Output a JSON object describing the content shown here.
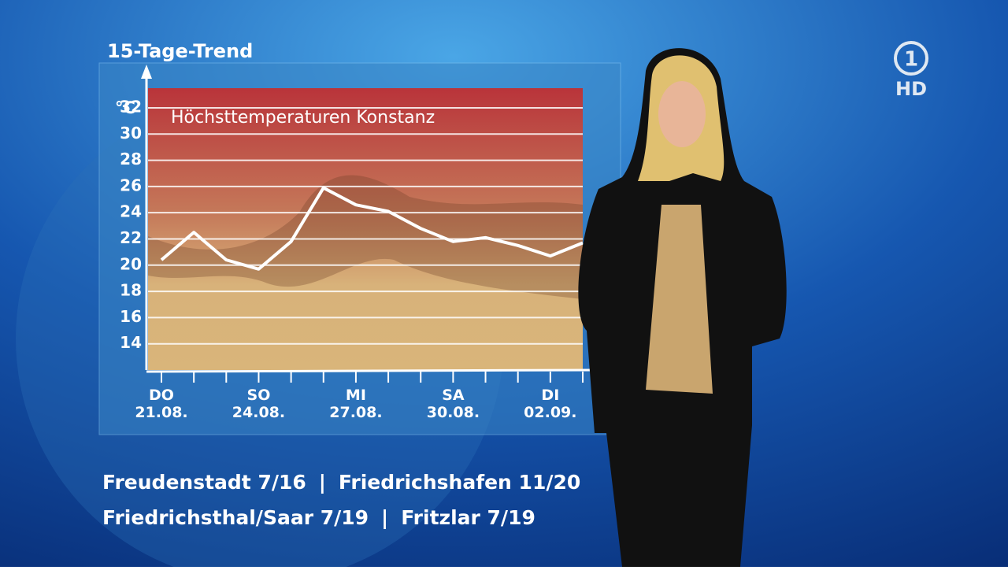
{
  "chart_data": {
    "type": "line",
    "header": "15-Tage-Trend",
    "title": "Höchsttemperaturen Konstanz",
    "ylabel": "°C",
    "categories": [
      "DO 21.08.",
      null,
      null,
      "SO 24.08.",
      null,
      null,
      "MI 27.08.",
      null,
      null,
      "SA 30.08.",
      null,
      null,
      "DI 02.09.",
      null
    ],
    "series": [
      {
        "name": "Höchsttemperatur",
        "color": "#ffffff",
        "values": [
          20.4,
          22.5,
          20.4,
          19.7,
          21.8,
          25.9,
          24.6,
          24.1,
          22.8,
          21.8,
          22.1,
          21.5,
          20.7,
          21.7
        ]
      }
    ],
    "ylim": [
      12,
      33.5
    ],
    "yticks": [
      14,
      16,
      18,
      20,
      22,
      24,
      26,
      28,
      30,
      32
    ],
    "grid": true
  },
  "ticker": [
    [
      "Freudenstadt 7/16",
      "Friedrichshafen 11/20"
    ],
    [
      "Friedrichsthal/Saar 7/19",
      "Fritzlar 7/19"
    ]
  ],
  "logo": {
    "number": "1",
    "text": "HD"
  }
}
